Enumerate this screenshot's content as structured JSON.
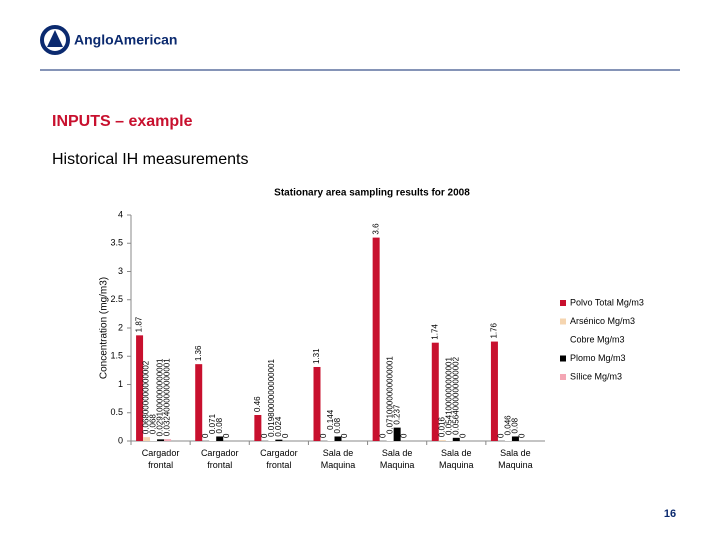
{
  "slide": {
    "logo": "AngloAmerican",
    "heading": "INPUTS – example",
    "subheading": "Historical IH measurements",
    "page_number": "16"
  },
  "chart_data": {
    "type": "bar",
    "title": "Stationary area sampling results for 2008",
    "y_label": "Concentration (mg/m3)",
    "categories": [
      "Cargador frontal",
      "Cargador frontal",
      "Cargador frontal",
      "Sala de Maquina",
      "Sala de Maquina",
      "Sala de Maquina",
      "Sala de Maquina"
    ],
    "ylim": [
      0,
      4
    ],
    "yticks": [
      0,
      0.5,
      1,
      1.5,
      2,
      2.5,
      3,
      3.5,
      4
    ],
    "legend": "right",
    "series": [
      {
        "name": "Polvo Total Mg/m3",
        "color": "#c8102e",
        "values": [
          1.87,
          1.36,
          0.46,
          1.31,
          3.6,
          1.74,
          1.76
        ]
      },
      {
        "name": "Arsénico Mg/m3",
        "color": "#f5d5b0",
        "values": [
          0.068000000000002,
          0,
          0,
          0,
          0,
          0.016,
          0
        ]
      },
      {
        "name": "Cobre Mg/m3",
        "color": "#ffffff",
        "values": [
          0.068,
          0.071,
          0.0198000000000001,
          0.144,
          0.0710000000000001,
          0.0541000000000001,
          0.046
        ]
      },
      {
        "name": "Plomo Mg/m3",
        "color": "#000000",
        "values": [
          0.0291000000000001,
          0.08,
          0.024,
          0.08,
          0.237,
          0.0564000000000002,
          0.08
        ]
      },
      {
        "name": "Sílice Mg/m3",
        "color": "#f4a6b4",
        "values": [
          0.0324000000000001,
          0,
          0,
          0,
          0,
          0,
          0
        ]
      }
    ]
  }
}
